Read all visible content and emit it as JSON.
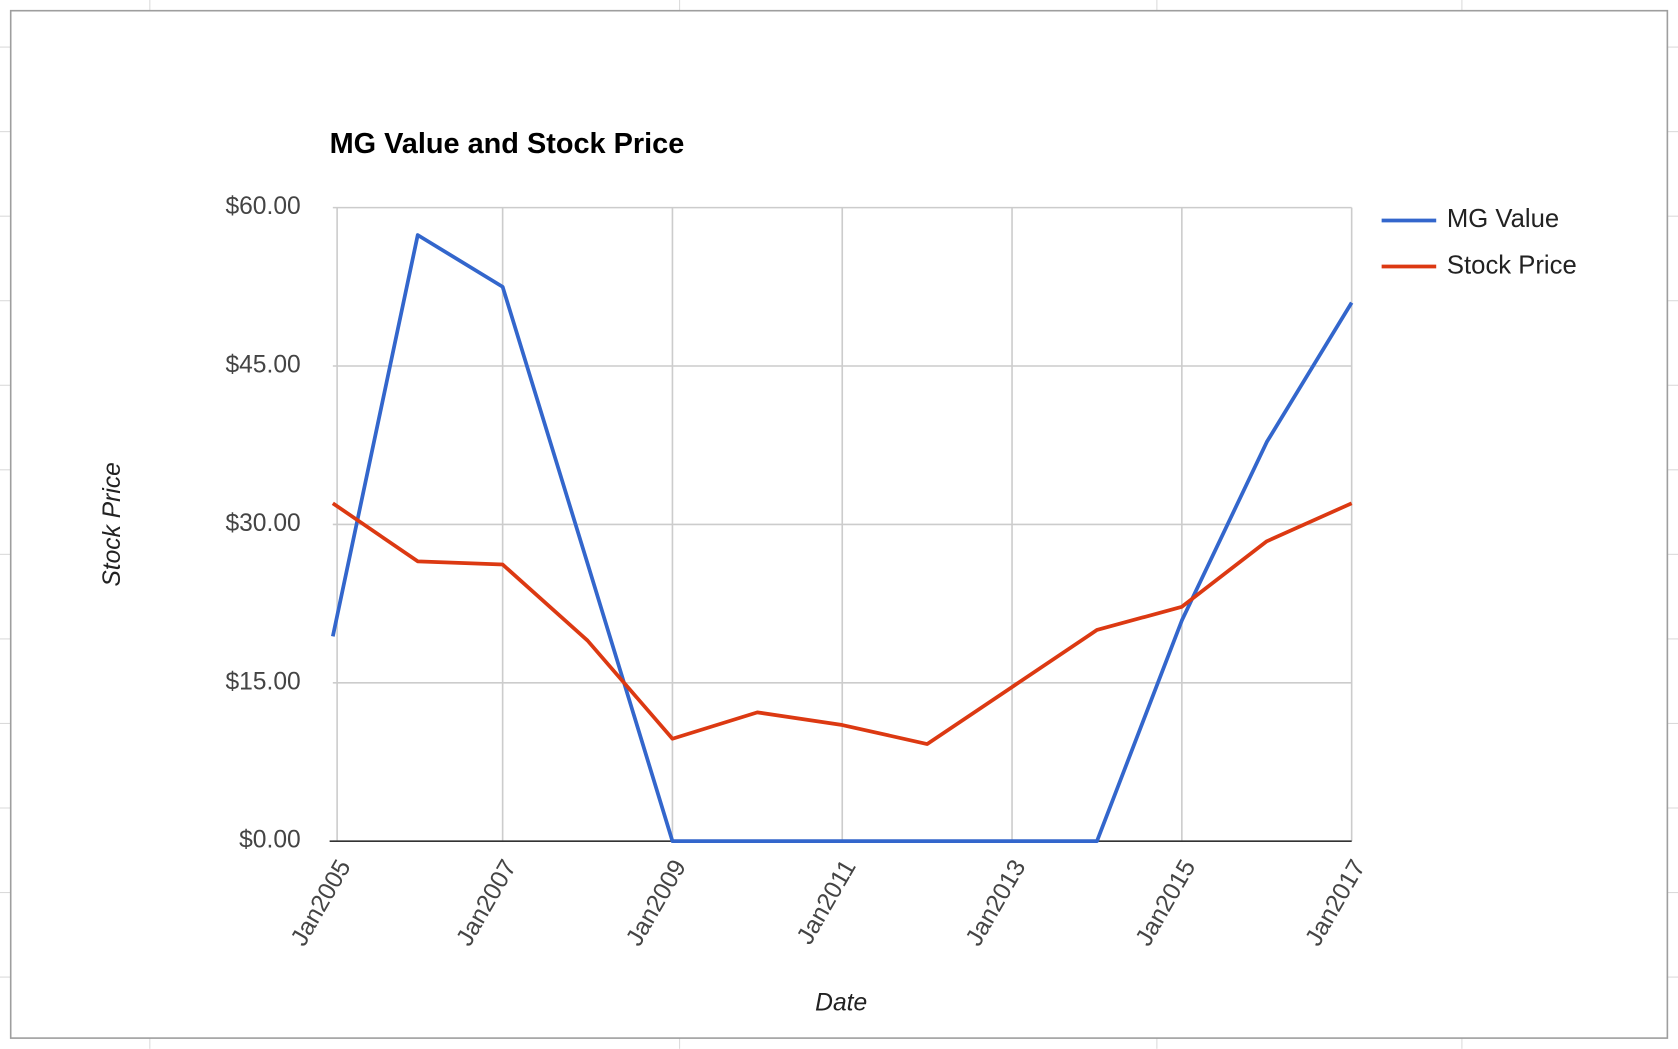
{
  "chart_data": {
    "type": "line",
    "title": "MG Value and Stock Price",
    "x_label": "Date",
    "y_label": "Stock Price",
    "categories": [
      "Jan2005",
      null,
      "Jan2007",
      null,
      "Jan2009",
      null,
      "Jan2011",
      null,
      "Jan2013",
      null,
      "Jan2015",
      null,
      "Jan2017"
    ],
    "series": [
      {
        "name": "MG Value",
        "color": "#3366cc",
        "values": [
          19.4,
          57.4,
          52.5,
          26.3,
          0,
          0,
          0,
          0,
          0,
          0,
          20.9,
          37.8,
          51.0
        ]
      },
      {
        "name": "Stock Price",
        "color": "#dc3912",
        "values": [
          32.0,
          26.5,
          26.2,
          19.0,
          9.7,
          12.2,
          11.0,
          9.2,
          14.6,
          20.0,
          22.2,
          28.4,
          32.0
        ]
      }
    ],
    "ylim": [
      0,
      60
    ],
    "yticks": [
      {
        "value": 0,
        "label": "$0.00"
      },
      {
        "value": 15,
        "label": "$15.00"
      },
      {
        "value": 30,
        "label": "$30.00"
      },
      {
        "value": 45,
        "label": "$45.00"
      },
      {
        "value": 60,
        "label": "$60.00"
      }
    ],
    "grid": true,
    "legend": "right"
  }
}
